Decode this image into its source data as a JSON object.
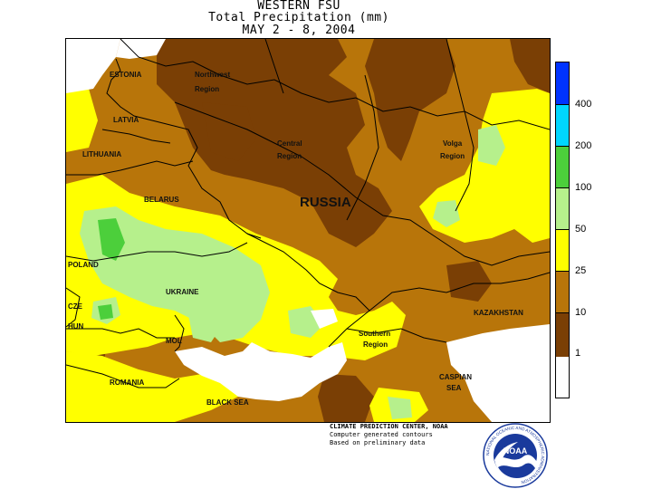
{
  "title": {
    "line1": "WESTERN FSU",
    "line2": "Total Precipitation (mm)",
    "line3": "MAY 2 - 8, 2004"
  },
  "map": {
    "country_labels": {
      "estonia": "ESTONIA",
      "latvia": "LATVIA",
      "lithuania": "LITHUANIA",
      "belarus": "BELARUS",
      "poland": "POLAND",
      "czech": "CZE",
      "hungary": "HUN",
      "moldova": "MOL",
      "romania": "ROMANIA",
      "ukraine": "UKRAINE",
      "russia": "RUSSIA",
      "kazakhstan": "KAZAKHSTAN"
    },
    "region_labels": {
      "northwest_1": "Northwest",
      "northwest_2": "Region",
      "central_1": "Central",
      "central_2": "Region",
      "volga_1": "Volga",
      "volga_2": "Region",
      "southern_1": "Southern",
      "southern_2": "Region"
    },
    "sea_labels": {
      "black_sea": "BLACK SEA",
      "caspian_1": "CASPIAN",
      "caspian_2": "SEA"
    },
    "colors": {
      "dark_brown": "#7a3f05",
      "brown": "#b8750a",
      "yellow": "#ffff00",
      "light_green": "#b6f08c",
      "green": "#4ccf3b",
      "cyan": "#00d6ff",
      "blue": "#0033ff",
      "water": "#ffffff"
    }
  },
  "legend": {
    "ticks": [
      "400",
      "200",
      "100",
      "50",
      "25",
      "10",
      "1"
    ]
  },
  "credits": {
    "line1": "CLIMATE PREDICTION CENTER, NOAA",
    "line2": "Computer generated contours",
    "line3": "Based on preliminary data"
  },
  "logo": {
    "text": "NOAA",
    "ring_text": "NATIONAL OCEANIC AND ATMOSPHERIC ADMINISTRATION"
  }
}
